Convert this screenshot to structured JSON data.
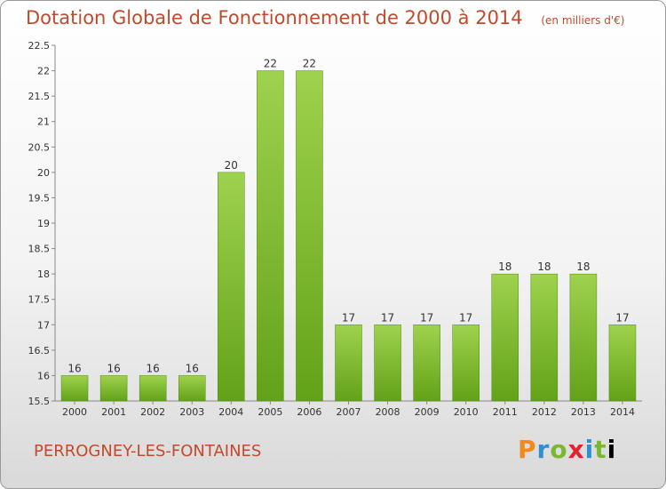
{
  "title": "Dotation Globale de Fonctionnement de 2000 à 2014",
  "unit": "(en milliers d'€)",
  "commune": "PERROGNEY-LES-FONTAINES",
  "brand": [
    "P",
    "r",
    "o",
    "x",
    "i",
    "t",
    "i"
  ],
  "colors": {
    "title": "#c24a2b",
    "bar_top": "#9fd24e",
    "bar_bottom": "#62a218",
    "bar_stroke": "#4f8a12"
  },
  "chart_data": {
    "type": "bar",
    "categories": [
      "2000",
      "2001",
      "2002",
      "2003",
      "2004",
      "2005",
      "2006",
      "2007",
      "2008",
      "2009",
      "2010",
      "2011",
      "2012",
      "2013",
      "2014"
    ],
    "values": [
      16,
      16,
      16,
      16,
      20,
      22,
      22,
      17,
      17,
      17,
      17,
      18,
      18,
      18,
      17
    ],
    "labels": [
      "16",
      "16",
      "16",
      "16",
      "20",
      "22",
      "22",
      "17",
      "17",
      "17",
      "17",
      "18",
      "18",
      "18",
      "17"
    ],
    "ylim": [
      15.5,
      22.5
    ],
    "yticks": [
      "15.5",
      "16",
      "16.5",
      "17",
      "17.5",
      "18",
      "18.5",
      "19",
      "19.5",
      "20",
      "20.5",
      "21",
      "21.5",
      "22",
      "22.5"
    ],
    "grid": false
  }
}
